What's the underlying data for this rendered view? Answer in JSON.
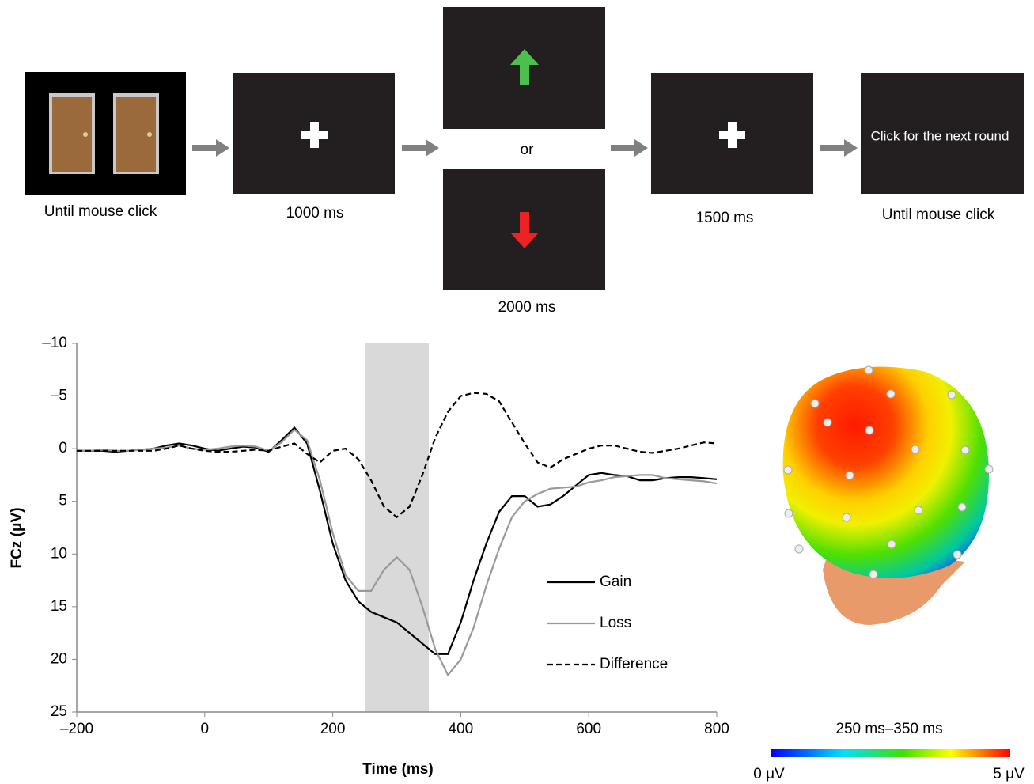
{
  "diagram": {
    "captions": [
      "Until mouse click",
      "1000 ms",
      "2000 ms",
      "1500 ms",
      "Until mouse click"
    ],
    "or_label": "or",
    "end_screen_text": "Click for the next round"
  },
  "topography": {
    "title": "250 ms–350 ms",
    "colorbar_min_label": "0 μV",
    "colorbar_max_label": "5 μV"
  },
  "chart_data": {
    "type": "line",
    "x_label": "Time (ms)",
    "y_label": "FCz (μV)",
    "xlim": [
      -200,
      800
    ],
    "ylim": [
      -10,
      25
    ],
    "y_inverted": true,
    "xticks": [
      {
        "value": -200,
        "label": "–200"
      },
      0,
      200,
      400,
      600,
      800
    ],
    "yticks": [
      {
        "value": -10,
        "label": "–10"
      },
      {
        "value": -5,
        "label": "–5"
      },
      0,
      5,
      10,
      15,
      20,
      25
    ],
    "shaded_range": [
      250,
      350
    ],
    "x": [
      -200,
      -180,
      -160,
      -140,
      -120,
      -100,
      -80,
      -60,
      -40,
      -20,
      0,
      20,
      40,
      60,
      80,
      100,
      120,
      140,
      160,
      180,
      200,
      220,
      240,
      260,
      280,
      300,
      320,
      340,
      360,
      380,
      400,
      420,
      440,
      460,
      480,
      500,
      520,
      540,
      560,
      580,
      600,
      620,
      640,
      660,
      680,
      700,
      720,
      740,
      760,
      780,
      800
    ],
    "series": [
      {
        "name": "Gain",
        "color": "#000000",
        "dashed": false,
        "values": [
          0.2,
          0.2,
          0.2,
          0.3,
          0.2,
          0.1,
          0,
          -0.3,
          -0.5,
          -0.3,
          0,
          0.2,
          0,
          -0.2,
          -0.1,
          0.3,
          -0.8,
          -2,
          -0.5,
          4,
          9,
          12.5,
          14.5,
          15.5,
          16,
          16.5,
          17.5,
          18.5,
          19.5,
          19.5,
          16.5,
          12.5,
          9,
          6,
          4.5,
          4.5,
          5.5,
          5.3,
          4.5,
          3.5,
          2.5,
          2.3,
          2.5,
          2.6,
          3,
          3,
          2.8,
          2.7,
          2.7,
          2.8,
          2.9
        ]
      },
      {
        "name": "Loss",
        "color": "#999999",
        "dashed": false,
        "values": [
          0.2,
          0.2,
          0.1,
          0.2,
          0.2,
          0.1,
          0,
          -0.1,
          -0.3,
          0,
          0.1,
          0,
          -0.2,
          -0.3,
          -0.2,
          0.2,
          -0.6,
          -1.8,
          -0.8,
          3,
          8,
          12,
          13.5,
          13.5,
          11.5,
          10.3,
          11.5,
          15,
          19,
          21.5,
          20,
          17,
          13,
          9.5,
          6.5,
          5,
          4.3,
          3.8,
          3.7,
          3.6,
          3.2,
          3,
          2.7,
          2.6,
          2.5,
          2.5,
          2.8,
          2.9,
          3,
          3.1,
          3.3
        ]
      },
      {
        "name": "Difference",
        "color": "#000000",
        "dashed": true,
        "values": [
          0.2,
          0.2,
          0.2,
          0.2,
          0.2,
          0.2,
          0.2,
          0,
          -0.3,
          0,
          0.2,
          0.3,
          0.3,
          0.2,
          0.1,
          0.2,
          -0.2,
          -0.5,
          0.5,
          1.3,
          0.2,
          0,
          1,
          3,
          5.5,
          6.5,
          5.5,
          2.5,
          -1,
          -3.5,
          -5,
          -5.3,
          -5.2,
          -4.5,
          -2.5,
          -0.5,
          1.3,
          1.8,
          1,
          0.5,
          0,
          -0.3,
          -0.3,
          0,
          0.3,
          0.4,
          0.2,
          0,
          -0.3,
          -0.6,
          -0.5
        ]
      }
    ]
  }
}
